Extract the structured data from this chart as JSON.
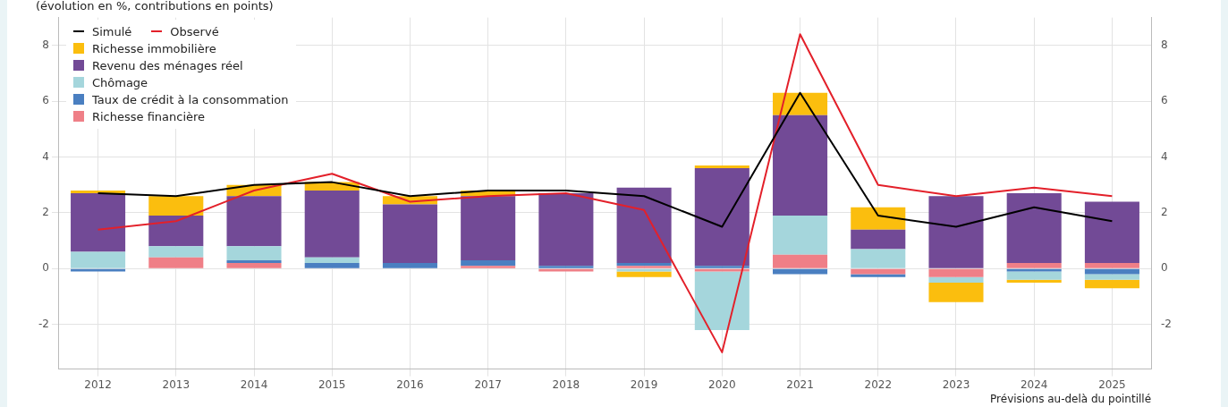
{
  "chart_data": {
    "type": "bar",
    "subtitle": "(évolution en %, contributions en points)",
    "categories": [
      "2012",
      "2013",
      "2014",
      "2015",
      "2016",
      "2017",
      "2018",
      "2019",
      "2020",
      "2021",
      "2022",
      "2023",
      "2024",
      "2025"
    ],
    "stacked": true,
    "series": [
      {
        "name": "Richesse financière",
        "color": "#ef7f87",
        "values": [
          0,
          0.4,
          0.2,
          0,
          0,
          0.1,
          -0.1,
          0.1,
          -0.1,
          0.5,
          -0.2,
          -0.3,
          0.2,
          0.2
        ]
      },
      {
        "name": "Taux de crédit à la consommation",
        "color": "#4a7fc1",
        "values": [
          -0.1,
          0,
          0.1,
          0.2,
          0.2,
          0.2,
          0.1,
          0.1,
          0.1,
          -0.2,
          -0.1,
          0,
          -0.1,
          -0.2
        ]
      },
      {
        "name": "Chômage",
        "color": "#a5d6dc",
        "values": [
          0.6,
          0.4,
          0.5,
          0.2,
          0,
          0,
          0,
          -0.1,
          -2.1,
          1.4,
          0.7,
          -0.2,
          -0.3,
          -0.2
        ]
      },
      {
        "name": "Revenu des ménages réel",
        "color": "#724a96",
        "values": [
          2.1,
          1.1,
          1.8,
          2.4,
          2.1,
          2.3,
          2.6,
          2.7,
          3.5,
          3.6,
          0.7,
          2.6,
          2.5,
          2.2
        ]
      },
      {
        "name": "Richesse immobilière",
        "color": "#fbbe0e",
        "values": [
          0.1,
          0.7,
          0.4,
          0.3,
          0.3,
          0.2,
          0,
          -0.2,
          0.1,
          0.8,
          0.8,
          -0.7,
          -0.1,
          -0.3
        ]
      },
      {
        "name": "Simulé",
        "type": "line",
        "color": "#000000",
        "values": [
          2.7,
          2.6,
          3.0,
          3.1,
          2.6,
          2.8,
          2.8,
          2.6,
          1.5,
          6.3,
          1.9,
          1.5,
          2.2,
          1.7
        ]
      },
      {
        "name": "Observé",
        "type": "line",
        "color": "#e3202a",
        "values": [
          1.4,
          1.7,
          2.8,
          3.4,
          2.4,
          2.6,
          2.7,
          2.1,
          -3.0,
          8.4,
          3.0,
          2.6,
          2.9,
          2.6
        ]
      }
    ],
    "ylim": [
      -3.6,
      9
    ],
    "yticks": [
      -2,
      0,
      2,
      4,
      6,
      8
    ],
    "y2lim": [
      -3.6,
      9
    ],
    "y2ticks": [
      -2,
      0,
      2,
      4,
      6,
      8
    ],
    "grid": true,
    "legend": "top left",
    "marker": "none",
    "line_style": "solid",
    "annotations": [
      "Prévisions au-delà du pointillé"
    ]
  }
}
